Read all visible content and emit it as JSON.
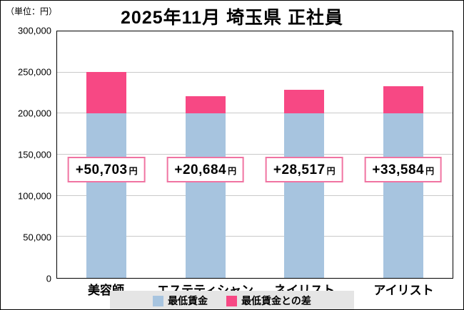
{
  "unit_label": "（単位：円）",
  "chart_data": {
    "type": "bar",
    "stacked": true,
    "title": "2025年11月 埼玉県 正社員",
    "categories": [
      "美容師",
      "エステティシャン",
      "ネイリスト",
      "アイリスト"
    ],
    "series": [
      {
        "name": "最低賃金",
        "color": "#a7c4df",
        "values": [
          200000,
          200000,
          200000,
          200000
        ]
      },
      {
        "name": "最低賃金との差",
        "color": "#f74884",
        "values": [
          50703,
          20684,
          28517,
          33584
        ]
      }
    ],
    "totals": [
      250703,
      220684,
      228517,
      233584
    ],
    "annotations": [
      {
        "value": "+50,703",
        "suffix": "円"
      },
      {
        "value": "+20,684",
        "suffix": "円"
      },
      {
        "value": "+28,517",
        "suffix": "円"
      },
      {
        "value": "+33,584",
        "suffix": "円"
      }
    ],
    "ylim": [
      0,
      300000
    ],
    "ytick_step": 50000,
    "yticks": [
      "300,000",
      "250,000",
      "200,000",
      "150,000",
      "100,000",
      "50,000",
      "0"
    ],
    "grid": true,
    "legend_position": "bottom"
  },
  "legend": {
    "items": [
      {
        "label": "最低賃金",
        "color": "#a7c4df"
      },
      {
        "label": "最低賃金との差",
        "color": "#f74884"
      }
    ]
  }
}
